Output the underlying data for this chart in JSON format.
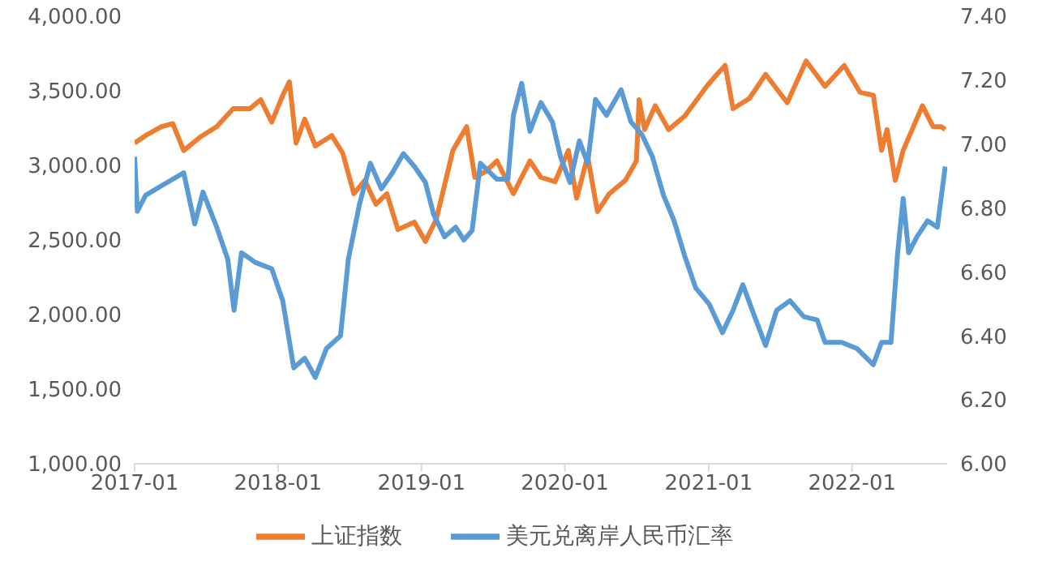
{
  "chart_data": {
    "type": "line",
    "legend": "bottom",
    "marker": "none",
    "line_style": "solid",
    "xlim": [
      "2017-01-01",
      "2022-08-31"
    ],
    "xticks": [
      "2017-01",
      "2018-01",
      "2019-01",
      "2020-01",
      "2021-01",
      "2022-01"
    ],
    "ylim": [
      1000,
      4000
    ],
    "yticks": [
      {
        "value": 1000,
        "label": "1,000.00"
      },
      {
        "value": 1500,
        "label": "1,500.00"
      },
      {
        "value": 2000,
        "label": "2,000.00"
      },
      {
        "value": 2500,
        "label": "2,500.00"
      },
      {
        "value": 3000,
        "label": "3,000.00"
      },
      {
        "value": 3500,
        "label": "3,500.00"
      },
      {
        "value": 4000,
        "label": "4,000.00"
      }
    ],
    "y2lim": [
      6,
      7.4
    ],
    "y2ticks": [
      {
        "value": 6,
        "label": "6.00"
      },
      {
        "value": 6.2,
        "label": "6.20"
      },
      {
        "value": 6.4,
        "label": "6.40"
      },
      {
        "value": 6.6,
        "label": "6.60"
      },
      {
        "value": 6.8,
        "label": "6.80"
      },
      {
        "value": 7,
        "label": "7.00"
      },
      {
        "value": 7.2,
        "label": "7.20"
      },
      {
        "value": 7.4,
        "label": "7.40"
      }
    ],
    "series": [
      {
        "name": "上证指数",
        "color": "#ed7d31",
        "x": [
          "2017-01-01",
          "2017-01-29",
          "2017-03-11",
          "2017-04-08",
          "2017-05-06",
          "2017-06-17",
          "2017-07-29",
          "2017-09-09",
          "2017-10-21",
          "2017-11-18",
          "2017-12-16",
          "2018-01-13",
          "2018-01-30",
          "2018-02-16",
          "2018-03-10",
          "2018-04-06",
          "2018-05-18",
          "2018-06-15",
          "2018-07-13",
          "2018-08-10",
          "2018-09-07",
          "2018-10-05",
          "2018-11-02",
          "2018-12-14",
          "2019-01-11",
          "2019-02-08",
          "2019-03-22",
          "2019-04-26",
          "2019-05-17",
          "2019-06-14",
          "2019-07-12",
          "2019-08-23",
          "2019-10-04",
          "2019-11-01",
          "2019-12-07",
          "2020-01-10",
          "2020-01-31",
          "2020-02-28",
          "2020-03-24",
          "2020-04-23",
          "2020-06-03",
          "2020-07-01",
          "2020-07-08",
          "2020-07-22",
          "2020-08-18",
          "2020-09-21",
          "2020-11-01",
          "2020-12-27",
          "2021-01-22",
          "2021-02-12",
          "2021-03-04",
          "2021-04-15",
          "2021-05-26",
          "2021-07-20",
          "2021-09-06",
          "2021-10-24",
          "2021-12-12",
          "2022-01-21",
          "2022-02-24",
          "2022-03-17",
          "2022-03-31",
          "2022-04-21",
          "2022-05-11",
          "2022-06-29",
          "2022-07-26",
          "2022-08-16",
          "2022-08-26"
        ],
        "values": [
          3150,
          3200,
          3260,
          3280,
          3100,
          3190,
          3260,
          3380,
          3380,
          3440,
          3290,
          3470,
          3560,
          3150,
          3310,
          3130,
          3200,
          3080,
          2810,
          2900,
          2740,
          2810,
          2570,
          2620,
          2490,
          2640,
          3100,
          3260,
          2920,
          2960,
          3030,
          2810,
          3030,
          2920,
          2890,
          3100,
          2780,
          3060,
          2690,
          2810,
          2900,
          3030,
          3440,
          3240,
          3400,
          3240,
          3330,
          3530,
          3610,
          3670,
          3380,
          3450,
          3610,
          3420,
          3700,
          3530,
          3670,
          3490,
          3470,
          3100,
          3240,
          2900,
          3100,
          3400,
          3260,
          3260,
          3240
        ]
      },
      {
        "name": "美元兑离岸人民币汇率",
        "color": "#5b9bd5",
        "axis": "y2",
        "x": [
          "2017-01-01",
          "2017-01-08",
          "2017-01-29",
          "2017-03-11",
          "2017-05-06",
          "2017-06-03",
          "2017-06-24",
          "2017-07-29",
          "2017-08-26",
          "2017-09-11",
          "2017-09-30",
          "2017-11-04",
          "2017-12-16",
          "2018-01-13",
          "2018-02-10",
          "2018-03-10",
          "2018-04-06",
          "2018-05-04",
          "2018-06-09",
          "2018-06-29",
          "2018-07-27",
          "2018-08-24",
          "2018-09-21",
          "2018-10-19",
          "2018-11-16",
          "2018-12-14",
          "2019-01-11",
          "2019-02-01",
          "2019-03-01",
          "2019-03-29",
          "2019-04-19",
          "2019-05-10",
          "2019-05-31",
          "2019-07-12",
          "2019-08-09",
          "2019-08-23",
          "2019-09-13",
          "2019-10-04",
          "2019-11-01",
          "2019-11-30",
          "2019-12-21",
          "2020-01-14",
          "2020-02-07",
          "2020-02-28",
          "2020-03-19",
          "2020-04-16",
          "2020-05-23",
          "2020-06-17",
          "2020-07-15",
          "2020-08-11",
          "2020-09-08",
          "2020-10-05",
          "2020-11-01",
          "2020-11-29",
          "2021-01-02",
          "2021-02-05",
          "2021-03-04",
          "2021-03-29",
          "2021-04-28",
          "2021-05-26",
          "2021-06-23",
          "2021-07-27",
          "2021-08-31",
          "2021-10-04",
          "2021-10-24",
          "2021-12-05",
          "2022-01-14",
          "2022-02-24",
          "2022-03-17",
          "2022-04-10",
          "2022-04-27",
          "2022-05-11",
          "2022-05-25",
          "2022-06-15",
          "2022-07-12",
          "2022-08-06",
          "2022-08-26"
        ],
        "values": [
          6.96,
          6.79,
          6.84,
          6.87,
          6.91,
          6.75,
          6.85,
          6.74,
          6.64,
          6.48,
          6.66,
          6.63,
          6.61,
          6.51,
          6.3,
          6.33,
          6.27,
          6.36,
          6.4,
          6.64,
          6.81,
          6.94,
          6.86,
          6.91,
          6.97,
          6.93,
          6.88,
          6.78,
          6.71,
          6.74,
          6.7,
          6.73,
          6.94,
          6.89,
          6.89,
          7.09,
          7.19,
          7.04,
          7.13,
          7.07,
          6.96,
          6.88,
          7.01,
          6.94,
          7.14,
          7.09,
          7.17,
          7.07,
          7.03,
          6.96,
          6.84,
          6.76,
          6.65,
          6.55,
          6.5,
          6.41,
          6.48,
          6.56,
          6.46,
          6.37,
          6.48,
          6.51,
          6.46,
          6.45,
          6.38,
          6.38,
          6.36,
          6.31,
          6.38,
          6.38,
          6.66,
          6.83,
          6.66,
          6.71,
          6.76,
          6.74,
          6.93
        ]
      }
    ]
  }
}
